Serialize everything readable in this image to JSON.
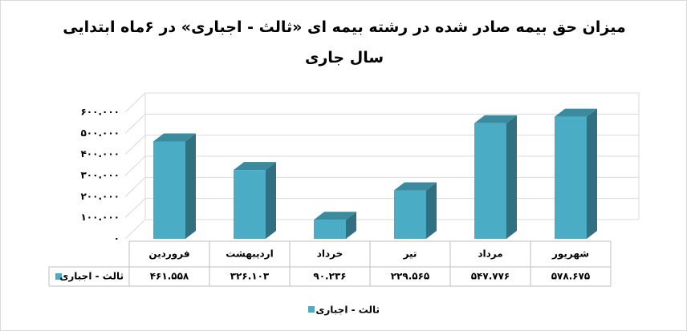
{
  "chart_data": {
    "type": "bar3d",
    "title": "میزان حق بیمه صادر شده در رشته بیمه ای «ثالث - اجباری» در ۶ماه ابتدایی سال جاری",
    "categories": [
      "فروردین",
      "اردیبهشت",
      "خرداد",
      "تیر",
      "مرداد",
      "شهریور"
    ],
    "series": [
      {
        "name": "ثالث - اجباری",
        "color": "#4bacc6",
        "values": [
          461558,
          326103,
          90236,
          229565,
          547776,
          578675
        ],
        "value_labels": [
          "۴۶۱.۵۵۸",
          "۳۲۶.۱۰۳",
          "۹۰.۲۳۶",
          "۲۲۹.۵۶۵",
          "۵۴۷.۷۷۶",
          "۵۷۸.۶۷۵"
        ]
      }
    ],
    "ylim": [
      0,
      600000
    ],
    "yticks": [
      {
        "value": 0,
        "label": "۰"
      },
      {
        "value": 100000,
        "label": "۱۰۰.۰۰۰"
      },
      {
        "value": 200000,
        "label": "۲۰۰.۰۰۰"
      },
      {
        "value": 300000,
        "label": "۳۰۰.۰۰۰"
      },
      {
        "value": 400000,
        "label": "۴۰۰.۰۰۰"
      },
      {
        "value": 500000,
        "label": "۵۰۰.۰۰۰"
      },
      {
        "value": 600000,
        "label": "۶۰۰.۰۰۰"
      }
    ],
    "grid": true,
    "legend": "bottom"
  }
}
